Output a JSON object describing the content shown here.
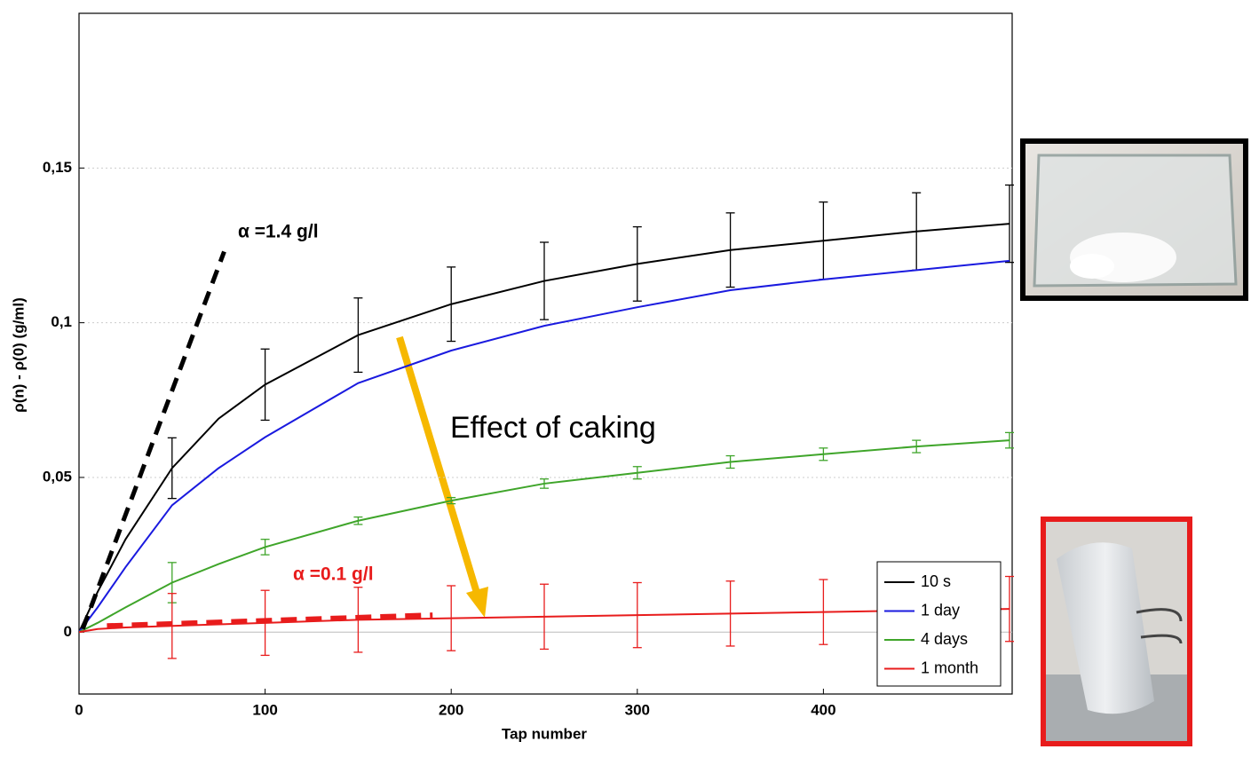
{
  "chart_data": {
    "type": "line",
    "x_label": "Tap number",
    "y_label": "ρ(n) - ρ(0) (g/ml)",
    "x": [
      0,
      10,
      25,
      50,
      75,
      100,
      150,
      200,
      250,
      300,
      350,
      400,
      450,
      500
    ],
    "xlim": [
      0,
      500
    ],
    "ylim": [
      -0.02,
      0.2
    ],
    "xticks": [
      0,
      100,
      200,
      300,
      400
    ],
    "yticks": [
      {
        "value": 0,
        "label": "0"
      },
      {
        "value": 0.05,
        "label": "0,05"
      },
      {
        "value": 0.1,
        "label": "0,1"
      },
      {
        "value": 0.15,
        "label": "0,15"
      }
    ],
    "grid": true,
    "legend": "lower right",
    "series": [
      {
        "name": "10 s",
        "color": "#000000",
        "values": [
          0,
          0.013,
          0.03,
          0.053,
          0.069,
          0.08,
          0.096,
          0.106,
          0.1135,
          0.119,
          0.1235,
          0.1265,
          0.1295,
          0.132
        ],
        "errors": [
          null,
          null,
          null,
          0.0098,
          null,
          0.0115,
          0.012,
          0.012,
          0.0125,
          0.012,
          0.012,
          0.0125,
          0.0125,
          0.0125
        ]
      },
      {
        "name": "1 day",
        "color": "#1a1adf",
        "values": [
          0,
          0.008,
          0.021,
          0.041,
          0.053,
          0.063,
          0.0805,
          0.091,
          0.099,
          0.105,
          0.1105,
          0.114,
          0.117,
          0.12
        ]
      },
      {
        "name": "4 days",
        "color": "#3fa52a",
        "values": [
          0,
          0.003,
          0.008,
          0.016,
          0.022,
          0.0275,
          0.036,
          0.0425,
          0.048,
          0.0515,
          0.055,
          0.0575,
          0.06,
          0.062
        ],
        "errors": [
          null,
          null,
          null,
          0.0065,
          null,
          0.0025,
          0.0012,
          0.001,
          0.0015,
          0.002,
          0.002,
          0.002,
          0.002,
          0.0025
        ]
      },
      {
        "name": "1 month",
        "color": "#e81c1c",
        "values": [
          0,
          0.001,
          0.0015,
          0.002,
          0.0025,
          0.003,
          0.004,
          0.0045,
          0.005,
          0.0055,
          0.006,
          0.0065,
          0.007,
          0.0075
        ],
        "errors": [
          null,
          null,
          null,
          0.0105,
          null,
          0.0105,
          0.0105,
          0.0105,
          0.0105,
          0.0105,
          0.0105,
          0.0105,
          0.0105,
          0.0105
        ]
      }
    ],
    "tangents": [
      {
        "label": "α =1.4 g/l",
        "color": "#000000",
        "x": [
          2,
          78
        ],
        "y": [
          0.001,
          0.123
        ]
      },
      {
        "label": "α =0.1 g/l",
        "color": "#e81c1c",
        "x": [
          15,
          190
        ],
        "y": [
          0.002,
          0.0055
        ]
      }
    ],
    "annotation": "Effect of caking"
  }
}
